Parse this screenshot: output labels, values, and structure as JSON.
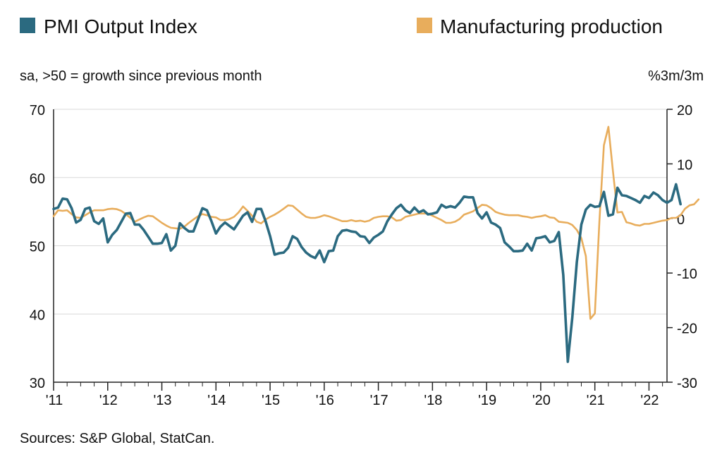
{
  "legend": {
    "series1_label": "PMI Output Index",
    "series2_label": "Manufacturing production"
  },
  "subtitle_left": "sa, >50 = growth since previous month",
  "subtitle_right": "%3m/3m",
  "source": "Sources: S&P Global, StatCan.",
  "colors": {
    "pmi": "#2b6a80",
    "production": "#e8ad5c",
    "grid": "#d9d9d9",
    "axis": "#222222"
  },
  "chart_data": {
    "type": "line",
    "legend_position": "top",
    "grid": true,
    "x_ticks": [
      "'11",
      "'12",
      "'13",
      "'14",
      "'15",
      "'16",
      "'17",
      "'18",
      "'19",
      "'20",
      "'21",
      "'22"
    ],
    "x_range": [
      2011.0,
      2022.333
    ],
    "left_axis": {
      "ticks": [
        30,
        40,
        50,
        60,
        70
      ],
      "ylim": [
        30,
        70
      ]
    },
    "right_axis": {
      "ticks": [
        -30,
        -20,
        -10,
        0,
        10,
        20
      ],
      "ylim": [
        -30,
        20
      ]
    },
    "series": [
      {
        "name": "PMI Output Index",
        "axis": "left",
        "color": "#2b6a80",
        "start": 2011.0,
        "step": 0.0833333,
        "values": [
          55.4,
          55.6,
          56.9,
          56.8,
          55.5,
          53.4,
          53.8,
          55.4,
          55.6,
          53.6,
          53.2,
          54.0,
          50.5,
          51.6,
          52.3,
          53.5,
          54.7,
          54.8,
          53.1,
          53.1,
          52.3,
          51.3,
          50.3,
          50.3,
          50.4,
          51.7,
          49.3,
          50.0,
          53.3,
          52.6,
          52.1,
          52.1,
          53.8,
          55.5,
          55.2,
          53.6,
          51.8,
          52.8,
          53.4,
          52.9,
          52.4,
          53.4,
          54.4,
          54.9,
          53.5,
          55.4,
          55.4,
          53.6,
          51.4,
          48.7,
          48.9,
          49.0,
          49.7,
          51.4,
          51.0,
          49.8,
          49.0,
          48.5,
          48.2,
          49.3,
          47.6,
          49.2,
          49.3,
          51.4,
          52.2,
          52.3,
          52.1,
          52.0,
          51.4,
          51.3,
          50.4,
          51.2,
          51.6,
          52.1,
          53.6,
          54.6,
          55.5,
          56.0,
          55.2,
          54.8,
          55.6,
          54.9,
          55.2,
          54.6,
          54.7,
          54.9,
          56.0,
          55.6,
          55.8,
          55.6,
          56.3,
          57.2,
          57.1,
          57.1,
          54.8,
          54.0,
          54.9,
          53.4,
          53.1,
          52.6,
          50.5,
          49.9,
          49.2,
          49.2,
          49.3,
          50.3,
          49.3,
          51.1,
          51.2,
          51.4,
          50.5,
          50.7,
          52.0,
          45.7,
          33.0,
          39.5,
          47.6,
          53.1,
          55.3,
          56.0,
          55.7,
          55.8,
          57.9,
          54.4,
          54.6,
          58.5,
          57.4,
          57.3,
          57.0,
          56.7,
          56.3,
          57.3,
          57.0,
          57.8,
          57.4,
          56.7,
          56.3,
          56.7,
          59.0,
          56.1
        ]
      },
      {
        "name": "Manufacturing production",
        "axis": "right",
        "color": "#e8ad5c",
        "start": 2011.0,
        "step": 0.0833333,
        "values": [
          0.4,
          1.5,
          1.4,
          1.5,
          0.8,
          0.2,
          0.1,
          0.6,
          1.1,
          1.5,
          1.5,
          1.5,
          1.7,
          1.8,
          1.7,
          1.4,
          0.8,
          0.1,
          -0.6,
          -0.2,
          0.2,
          0.5,
          0.4,
          -0.2,
          -0.8,
          -1.3,
          -1.7,
          -1.8,
          -1.9,
          -1.5,
          -0.8,
          -0.2,
          0.4,
          0.8,
          0.6,
          0.3,
          0.2,
          -0.3,
          -0.3,
          -0.1,
          0.3,
          1.1,
          2.2,
          1.4,
          0.5,
          -0.6,
          -0.9,
          -0.2,
          0.3,
          0.7,
          1.2,
          1.8,
          2.4,
          2.3,
          1.6,
          0.9,
          0.3,
          0.1,
          0.1,
          0.3,
          0.6,
          0.4,
          0.1,
          -0.2,
          -0.5,
          -0.5,
          -0.3,
          -0.5,
          -0.4,
          -0.6,
          -0.4,
          0.1,
          0.3,
          0.4,
          0.4,
          0.2,
          -0.4,
          -0.3,
          0.3,
          0.5,
          0.7,
          0.9,
          0.9,
          0.9,
          0.5,
          0.1,
          -0.3,
          -0.8,
          -0.8,
          -0.6,
          -0.1,
          0.7,
          1.0,
          1.3,
          1.9,
          2.5,
          2.4,
          1.9,
          1.2,
          0.9,
          0.7,
          0.6,
          0.6,
          0.6,
          0.4,
          0.3,
          0.1,
          0.3,
          0.4,
          0.6,
          0.2,
          0.1,
          -0.6,
          -0.7,
          -0.8,
          -1.2,
          -2.1,
          -3.6,
          -6.9,
          -18.4,
          -17.4,
          -0.6,
          13.4,
          16.8,
          8.7,
          1.1,
          1.2,
          -0.7,
          -0.9,
          -1.2,
          -1.3,
          -1.0,
          -1.0,
          -0.8,
          -0.6,
          -0.4,
          -0.3,
          0.1,
          0.1,
          0.6,
          1.8,
          2.4,
          2.6,
          3.5
        ]
      }
    ]
  }
}
